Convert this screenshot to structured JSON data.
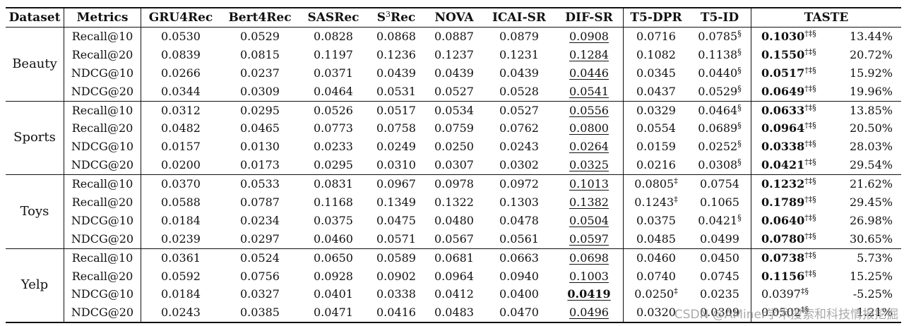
{
  "headers": [
    "Dataset",
    "Metrics",
    "GRU4Rec",
    "Bert4Rec",
    "SASRec",
    "S3Rec",
    "NOVA",
    "ICAI-SR",
    "DIF-SR",
    "T5-DPR",
    "T5-ID",
    "TASTE"
  ],
  "s3rec": {
    "base": "S",
    "sup": "3",
    "rest": "Rec"
  },
  "groups": [
    {
      "dataset": "Beauty",
      "rows": [
        {
          "metric": "Recall@10",
          "cells": [
            {
              "v": "0.0530"
            },
            {
              "v": "0.0529"
            },
            {
              "v": "0.0828"
            },
            {
              "v": "0.0868"
            },
            {
              "v": "0.0887"
            },
            {
              "v": "0.0879"
            },
            {
              "v": "0.0908",
              "u": true
            },
            {
              "v": "0.0716"
            },
            {
              "v": "0.0785",
              "s": "§"
            }
          ],
          "taste": {
            "v": "0.1030",
            "s": "†‡§",
            "b": true
          },
          "imp": "13.44%"
        },
        {
          "metric": "Recall@20",
          "cells": [
            {
              "v": "0.0839"
            },
            {
              "v": "0.0815"
            },
            {
              "v": "0.1197"
            },
            {
              "v": "0.1236"
            },
            {
              "v": "0.1237"
            },
            {
              "v": "0.1231"
            },
            {
              "v": "0.1284",
              "u": true
            },
            {
              "v": "0.1082"
            },
            {
              "v": "0.1138",
              "s": "§"
            }
          ],
          "taste": {
            "v": "0.1550",
            "s": "†‡§",
            "b": true
          },
          "imp": "20.72%"
        },
        {
          "metric": "NDCG@10",
          "cells": [
            {
              "v": "0.0266"
            },
            {
              "v": "0.0237"
            },
            {
              "v": "0.0371"
            },
            {
              "v": "0.0439"
            },
            {
              "v": "0.0439"
            },
            {
              "v": "0.0439"
            },
            {
              "v": "0.0446",
              "u": true
            },
            {
              "v": "0.0345"
            },
            {
              "v": "0.0440",
              "s": "§"
            }
          ],
          "taste": {
            "v": "0.0517",
            "s": "†‡§",
            "b": true
          },
          "imp": "15.92%"
        },
        {
          "metric": "NDCG@20",
          "cells": [
            {
              "v": "0.0344"
            },
            {
              "v": "0.0309"
            },
            {
              "v": "0.0464"
            },
            {
              "v": "0.0531"
            },
            {
              "v": "0.0527"
            },
            {
              "v": "0.0528"
            },
            {
              "v": "0.0541",
              "u": true
            },
            {
              "v": "0.0437"
            },
            {
              "v": "0.0529",
              "s": "§"
            }
          ],
          "taste": {
            "v": "0.0649",
            "s": "†‡§",
            "b": true
          },
          "imp": "19.96%"
        }
      ]
    },
    {
      "dataset": "Sports",
      "rows": [
        {
          "metric": "Recall@10",
          "cells": [
            {
              "v": "0.0312"
            },
            {
              "v": "0.0295"
            },
            {
              "v": "0.0526"
            },
            {
              "v": "0.0517"
            },
            {
              "v": "0.0534"
            },
            {
              "v": "0.0527"
            },
            {
              "v": "0.0556",
              "u": true
            },
            {
              "v": "0.0329"
            },
            {
              "v": "0.0464",
              "s": "§"
            }
          ],
          "taste": {
            "v": "0.0633",
            "s": "†‡§",
            "b": true
          },
          "imp": "13.85%"
        },
        {
          "metric": "Recall@20",
          "cells": [
            {
              "v": "0.0482"
            },
            {
              "v": "0.0465"
            },
            {
              "v": "0.0773"
            },
            {
              "v": "0.0758"
            },
            {
              "v": "0.0759"
            },
            {
              "v": "0.0762"
            },
            {
              "v": "0.0800",
              "u": true
            },
            {
              "v": "0.0554"
            },
            {
              "v": "0.0689",
              "s": "§"
            }
          ],
          "taste": {
            "v": "0.0964",
            "s": "†‡§",
            "b": true
          },
          "imp": "20.50%"
        },
        {
          "metric": "NDCG@10",
          "cells": [
            {
              "v": "0.0157"
            },
            {
              "v": "0.0130"
            },
            {
              "v": "0.0233"
            },
            {
              "v": "0.0249"
            },
            {
              "v": "0.0250"
            },
            {
              "v": "0.0243"
            },
            {
              "v": "0.0264",
              "u": true
            },
            {
              "v": "0.0159"
            },
            {
              "v": "0.0252",
              "s": "§"
            }
          ],
          "taste": {
            "v": "0.0338",
            "s": "†‡§",
            "b": true
          },
          "imp": "28.03%"
        },
        {
          "metric": "NDCG@20",
          "cells": [
            {
              "v": "0.0200"
            },
            {
              "v": "0.0173"
            },
            {
              "v": "0.0295"
            },
            {
              "v": "0.0310"
            },
            {
              "v": "0.0307"
            },
            {
              "v": "0.0302"
            },
            {
              "v": "0.0325",
              "u": true
            },
            {
              "v": "0.0216"
            },
            {
              "v": "0.0308",
              "s": "§"
            }
          ],
          "taste": {
            "v": "0.0421",
            "s": "†‡§",
            "b": true
          },
          "imp": "29.54%"
        }
      ]
    },
    {
      "dataset": "Toys",
      "rows": [
        {
          "metric": "Recall@10",
          "cells": [
            {
              "v": "0.0370"
            },
            {
              "v": "0.0533"
            },
            {
              "v": "0.0831"
            },
            {
              "v": "0.0967"
            },
            {
              "v": "0.0978"
            },
            {
              "v": "0.0972"
            },
            {
              "v": "0.1013",
              "u": true
            },
            {
              "v": "0.0805",
              "s": "‡"
            },
            {
              "v": "0.0754"
            }
          ],
          "taste": {
            "v": "0.1232",
            "s": "†‡§",
            "b": true
          },
          "imp": "21.62%"
        },
        {
          "metric": "Recall@20",
          "cells": [
            {
              "v": "0.0588"
            },
            {
              "v": "0.0787"
            },
            {
              "v": "0.1168"
            },
            {
              "v": "0.1349"
            },
            {
              "v": "0.1322"
            },
            {
              "v": "0.1303"
            },
            {
              "v": "0.1382",
              "u": true
            },
            {
              "v": "0.1243",
              "s": "‡"
            },
            {
              "v": "0.1065"
            }
          ],
          "taste": {
            "v": "0.1789",
            "s": "†‡§",
            "b": true
          },
          "imp": "29.45%"
        },
        {
          "metric": "NDCG@10",
          "cells": [
            {
              "v": "0.0184"
            },
            {
              "v": "0.0234"
            },
            {
              "v": "0.0375"
            },
            {
              "v": "0.0475"
            },
            {
              "v": "0.0480"
            },
            {
              "v": "0.0478"
            },
            {
              "v": "0.0504",
              "u": true
            },
            {
              "v": "0.0375"
            },
            {
              "v": "0.0421",
              "s": "§"
            }
          ],
          "taste": {
            "v": "0.0640",
            "s": "†‡§",
            "b": true
          },
          "imp": "26.98%"
        },
        {
          "metric": "NDCG@20",
          "cells": [
            {
              "v": "0.0239"
            },
            {
              "v": "0.0297"
            },
            {
              "v": "0.0460"
            },
            {
              "v": "0.0571"
            },
            {
              "v": "0.0567"
            },
            {
              "v": "0.0561"
            },
            {
              "v": "0.0597",
              "u": true
            },
            {
              "v": "0.0485"
            },
            {
              "v": "0.0499"
            }
          ],
          "taste": {
            "v": "0.0780",
            "s": "†‡§",
            "b": true
          },
          "imp": "30.65%"
        }
      ]
    },
    {
      "dataset": "Yelp",
      "rows": [
        {
          "metric": "Recall@10",
          "cells": [
            {
              "v": "0.0361"
            },
            {
              "v": "0.0524"
            },
            {
              "v": "0.0650"
            },
            {
              "v": "0.0589"
            },
            {
              "v": "0.0681"
            },
            {
              "v": "0.0663"
            },
            {
              "v": "0.0698",
              "u": true
            },
            {
              "v": "0.0460"
            },
            {
              "v": "0.0450"
            }
          ],
          "taste": {
            "v": "0.0738",
            "s": "†‡§",
            "b": true
          },
          "imp": "5.73%"
        },
        {
          "metric": "Recall@20",
          "cells": [
            {
              "v": "0.0592"
            },
            {
              "v": "0.0756"
            },
            {
              "v": "0.0928"
            },
            {
              "v": "0.0902"
            },
            {
              "v": "0.0964"
            },
            {
              "v": "0.0940"
            },
            {
              "v": "0.1003",
              "u": true
            },
            {
              "v": "0.0740"
            },
            {
              "v": "0.0745"
            }
          ],
          "taste": {
            "v": "0.1156",
            "s": "†‡§",
            "b": true
          },
          "imp": "15.25%"
        },
        {
          "metric": "NDCG@10",
          "cells": [
            {
              "v": "0.0184"
            },
            {
              "v": "0.0327"
            },
            {
              "v": "0.0401"
            },
            {
              "v": "0.0338"
            },
            {
              "v": "0.0412"
            },
            {
              "v": "0.0400"
            },
            {
              "v": "0.0419",
              "u": true,
              "b": true
            },
            {
              "v": "0.0250",
              "s": "‡"
            },
            {
              "v": "0.0235"
            }
          ],
          "taste": {
            "v": "0.0397",
            "s": "‡§"
          },
          "imp": "-5.25%"
        },
        {
          "metric": "NDCG@20",
          "cells": [
            {
              "v": "0.0243"
            },
            {
              "v": "0.0385"
            },
            {
              "v": "0.0471"
            },
            {
              "v": "0.0416"
            },
            {
              "v": "0.0483"
            },
            {
              "v": "0.0470"
            },
            {
              "v": "0.0496",
              "u": true
            },
            {
              "v": "0.0320"
            },
            {
              "v": "0.0309"
            }
          ],
          "taste": {
            "v": "0.0502",
            "s": "‡§"
          },
          "imp": "1.21%"
        }
      ]
    }
  ],
  "watermark": "CSDN @AMiner学术搜索和科技情报挖掘"
}
